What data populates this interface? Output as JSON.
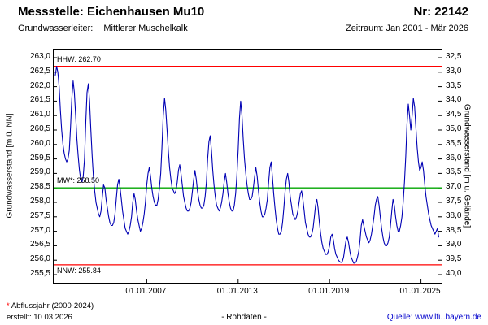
{
  "header": {
    "title": "Messstelle: Eichenhausen Mu10",
    "number": "Nr: 22142",
    "aquifer_label": "Grundwasserleiter:",
    "aquifer_value": "Mittlerer Muschelkalk",
    "period": "Zeitraum: Jan 2001 - Mär 2026"
  },
  "footer": {
    "note_mark": "*",
    "note_text": " Abflussjahr (2000-2024)",
    "created": "erstellt: 10.03.2026",
    "center": "- Rohdaten -",
    "source_label": "Quelle: ",
    "source_link": "www.lfu.bayern.de"
  },
  "colors": {
    "series_blue": "#0000b4",
    "extreme_red": "#ff0000",
    "mean_green": "#00a400",
    "link_blue": "#0000cc"
  },
  "chart_data": {
    "type": "line",
    "title": "",
    "ylabel_left": "Grundwasserstand [m ü. NN]",
    "ylabel_right": "Grundwasserstand [m u. Gelände]",
    "x_range": [
      2001.0,
      2026.25
    ],
    "y_left_range": [
      255.5,
      263.0
    ],
    "y_right_range": [
      40.0,
      32.5
    ],
    "grid": false,
    "legend": false,
    "y_left_tick_labels": [
      "263,0",
      "262,5",
      "262,0",
      "261,5",
      "261,0",
      "260,5",
      "260,0",
      "259,5",
      "259,0",
      "258,5",
      "258,0",
      "257,5",
      "257,0",
      "256,5",
      "256,0",
      "255,5"
    ],
    "y_right_tick_labels": [
      "32,5",
      "33,0",
      "33,5",
      "34,0",
      "34,5",
      "35,0",
      "35,5",
      "36,0",
      "36,5",
      "37,0",
      "37,5",
      "38,0",
      "38,5",
      "39,0",
      "39,5",
      "40,0"
    ],
    "x_tick_positions": [
      2007.0,
      2013.0,
      2019.0,
      2025.0
    ],
    "x_tick_labels": [
      "01.01.2007",
      "01.01.2013",
      "01.01.2019",
      "01.01.2025"
    ],
    "reference_lines": [
      {
        "name": "HHW",
        "label": "HHW: 262.70",
        "value": 262.7,
        "color": "#ff0000",
        "label_position": "above"
      },
      {
        "name": "MW",
        "label": "MW*: 258.50",
        "value": 258.5,
        "color": "#00a400",
        "label_position": "above"
      },
      {
        "name": "NNW",
        "label": "NNW: 255.84",
        "value": 255.84,
        "color": "#ff0000",
        "label_position": "below"
      }
    ],
    "series": [
      {
        "name": "Grundwasserstand (Rohdaten)",
        "color": "#0000b4",
        "x_start": 2001.0,
        "x_step_years": 0.0833333,
        "values": [
          262.4,
          262.7,
          262.5,
          262.0,
          261.2,
          260.5,
          260.0,
          259.7,
          259.5,
          259.4,
          259.5,
          259.8,
          260.6,
          261.6,
          262.2,
          261.8,
          261.0,
          260.2,
          259.6,
          259.1,
          258.8,
          258.7,
          258.9,
          259.5,
          260.8,
          261.8,
          262.1,
          261.5,
          260.5,
          259.6,
          258.9,
          258.4,
          258.0,
          257.8,
          257.6,
          257.5,
          257.7,
          258.2,
          258.6,
          258.5,
          258.1,
          257.8,
          257.5,
          257.3,
          257.2,
          257.2,
          257.3,
          257.6,
          258.1,
          258.6,
          258.8,
          258.5,
          258.1,
          257.7,
          257.4,
          257.1,
          257.0,
          256.9,
          257.0,
          257.2,
          257.5,
          258.0,
          258.3,
          258.1,
          257.7,
          257.4,
          257.2,
          257.0,
          257.1,
          257.3,
          257.6,
          258.0,
          258.6,
          259.0,
          259.2,
          258.9,
          258.5,
          258.2,
          258.0,
          257.9,
          257.9,
          258.1,
          258.5,
          259.0,
          259.9,
          261.0,
          261.6,
          261.2,
          260.5,
          259.8,
          259.2,
          258.8,
          258.5,
          258.4,
          258.3,
          258.4,
          258.7,
          259.1,
          259.3,
          259.0,
          258.6,
          258.2,
          258.0,
          257.8,
          257.7,
          257.7,
          257.8,
          258.0,
          258.4,
          258.8,
          259.1,
          258.8,
          258.4,
          258.1,
          257.9,
          257.8,
          257.8,
          257.9,
          258.2,
          258.7,
          259.5,
          260.1,
          260.3,
          259.8,
          259.1,
          258.6,
          258.2,
          257.9,
          257.8,
          257.7,
          257.8,
          258.0,
          258.3,
          258.7,
          259.0,
          258.7,
          258.3,
          258.0,
          257.8,
          257.7,
          257.7,
          257.9,
          258.3,
          258.9,
          259.8,
          260.9,
          261.5,
          261.0,
          260.2,
          259.5,
          259.0,
          258.6,
          258.3,
          258.1,
          258.1,
          258.2,
          258.5,
          258.9,
          259.2,
          258.9,
          258.4,
          258.0,
          257.7,
          257.5,
          257.5,
          257.6,
          257.8,
          258.1,
          258.7,
          259.2,
          259.4,
          258.9,
          258.3,
          257.8,
          257.4,
          257.1,
          256.9,
          256.9,
          257.0,
          257.3,
          257.8,
          258.4,
          258.8,
          259.0,
          258.7,
          258.2,
          257.9,
          257.6,
          257.5,
          257.4,
          257.5,
          257.7,
          258.0,
          258.3,
          258.4,
          258.1,
          257.7,
          257.3,
          257.1,
          256.9,
          256.8,
          256.8,
          256.9,
          257.1,
          257.5,
          257.9,
          258.1,
          257.8,
          257.3,
          256.9,
          256.6,
          256.4,
          256.3,
          256.2,
          256.2,
          256.3,
          256.5,
          256.8,
          256.9,
          256.7,
          256.4,
          256.2,
          256.1,
          256.0,
          255.95,
          255.92,
          255.95,
          256.1,
          256.4,
          256.7,
          256.8,
          256.6,
          256.3,
          256.1,
          256.0,
          255.9,
          255.9,
          255.95,
          256.1,
          256.3,
          256.7,
          257.2,
          257.4,
          257.2,
          257.0,
          256.8,
          256.7,
          256.6,
          256.7,
          256.9,
          257.2,
          257.5,
          257.9,
          258.1,
          258.2,
          257.9,
          257.5,
          257.1,
          256.8,
          256.6,
          256.5,
          256.5,
          256.6,
          256.8,
          257.2,
          257.7,
          258.1,
          257.9,
          257.5,
          257.2,
          257.0,
          257.0,
          257.2,
          257.5,
          258.0,
          258.7,
          259.6,
          260.7,
          261.4,
          261.0,
          260.5,
          261.0,
          261.6,
          261.3,
          260.6,
          259.9,
          259.4,
          259.1,
          259.2,
          259.4,
          259.1,
          258.6,
          258.2,
          257.9,
          257.6,
          257.4,
          257.2,
          257.1,
          257.0,
          256.9,
          257.0,
          257.1,
          256.8
        ]
      }
    ]
  }
}
